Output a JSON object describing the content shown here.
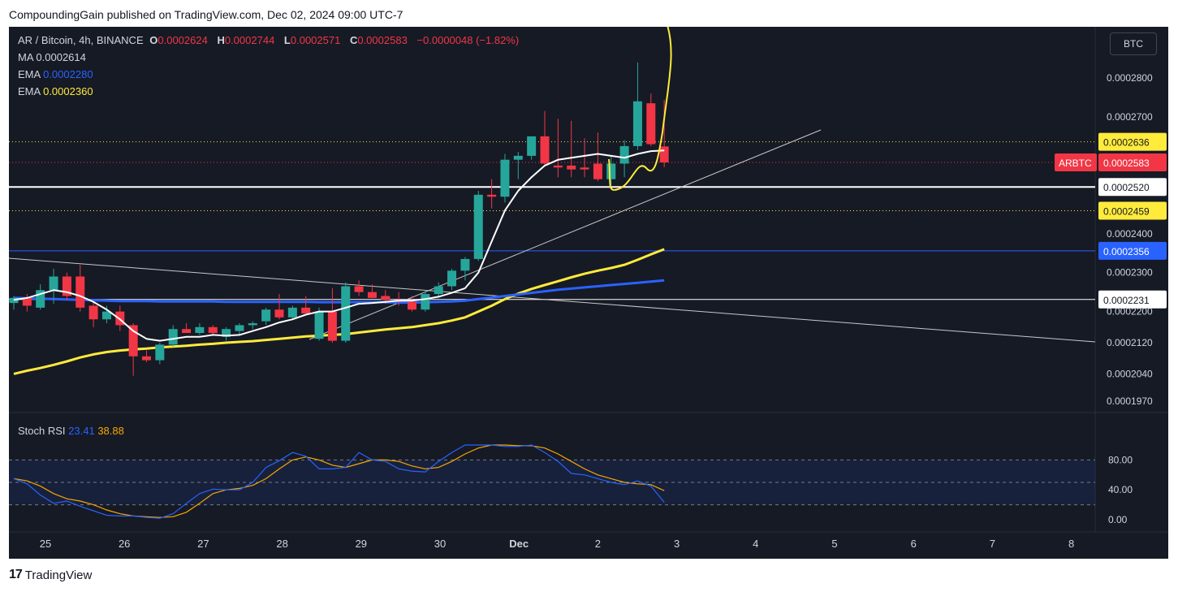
{
  "header": {
    "published_by": "CompoundingGain published on TradingView.com, Dec 02, 2024 09:00 UTC-7"
  },
  "legend": {
    "symbol": "AR / Bitcoin, 4h, BINANCE",
    "o_label": "O",
    "o_value": "0.0002624",
    "h_label": "H",
    "h_value": "0.0002744",
    "l_label": "L",
    "l_value": "0.0002571",
    "c_label": "C",
    "c_value": "0.0002583",
    "change": "−0.0000048 (−1.82%)",
    "ma_label": "MA",
    "ma_value": "0.0002614",
    "ema1_label": "EMA",
    "ema1_value": "0.0002280",
    "ema2_label": "EMA",
    "ema2_value": "0.0002360"
  },
  "currency_button": "BTC",
  "stoch": {
    "label": "Stoch RSI",
    "k_value": "23.41",
    "d_value": "38.88"
  },
  "footer": {
    "brand": "TradingView",
    "logo": "17"
  },
  "colors": {
    "up": "#26a69a",
    "down": "#f23645",
    "ma": "#ffffff",
    "ema_fast": "#2962ff",
    "ema_slow": "#ffeb3b",
    "bg": "#161a25",
    "stoch_k": "#2962ff",
    "stoch_d": "#f7a600"
  },
  "chart_data": {
    "type": "candlestick",
    "symbol": "ARBTC",
    "timeframe": "4h",
    "price_axis_ticks": [
      "0.0002800",
      "0.0002700",
      "0.0002400",
      "0.0002300",
      "0.0002200",
      "0.0002120",
      "0.0002040",
      "0.0001970"
    ],
    "price_tick_values": [
      0.00028,
      0.00027,
      0.00024,
      0.00023,
      0.00022,
      0.000212,
      0.000204,
      0.000197
    ],
    "time_axis_labels": [
      "25",
      "26",
      "27",
      "28",
      "29",
      "30",
      "Dec",
      "2",
      "3",
      "4",
      "5",
      "6",
      "7",
      "8"
    ],
    "price_labels": [
      {
        "text": "0.0002636",
        "value": 0.0002636,
        "style": "yellow"
      },
      {
        "text": "0.0002583",
        "value": 0.0002583,
        "style": "red",
        "tag": "ARBTC"
      },
      {
        "text": "0.0002520",
        "value": 0.000252,
        "style": "white"
      },
      {
        "text": "0.0002459",
        "value": 0.0002459,
        "style": "yellow"
      },
      {
        "text": "0.0002356",
        "value": 0.0002356,
        "style": "blue"
      },
      {
        "text": "0.0002231",
        "value": 0.0002231,
        "style": "white"
      }
    ],
    "horizontal_lines": [
      {
        "value": 0.000252,
        "style": "solid-white"
      },
      {
        "value": 0.0002231,
        "style": "solid-white"
      },
      {
        "value": 0.0002356,
        "style": "solid-blue"
      },
      {
        "value": 0.0002636,
        "style": "dotted-yellow"
      },
      {
        "value": 0.0002459,
        "style": "dotted-yellow"
      },
      {
        "value": 0.0002583,
        "style": "dotted-red"
      }
    ],
    "candles": [
      [
        0.0002222,
        0.000224,
        0.0002205,
        0.0002235
      ],
      [
        0.0002235,
        0.0002245,
        0.00022,
        0.0002215
      ],
      [
        0.000221,
        0.000227,
        0.0002205,
        0.0002255
      ],
      [
        0.0002255,
        0.000231,
        0.000222,
        0.000229
      ],
      [
        0.000229,
        0.00023,
        0.000223,
        0.000224
      ],
      [
        0.000229,
        0.000232,
        0.00022,
        0.000221
      ],
      [
        0.0002215,
        0.0002225,
        0.000216,
        0.000218
      ],
      [
        0.000218,
        0.0002215,
        0.000217,
        0.00022
      ],
      [
        0.00022,
        0.0002215,
        0.000215,
        0.0002165
      ],
      [
        0.0002165,
        0.000217,
        0.0002035,
        0.0002085
      ],
      [
        0.0002085,
        0.00021,
        0.000207,
        0.0002075
      ],
      [
        0.0002075,
        0.000212,
        0.0002065,
        0.0002115
      ],
      [
        0.0002115,
        0.0002165,
        0.000211,
        0.0002155
      ],
      [
        0.0002155,
        0.000217,
        0.0002145,
        0.0002145
      ],
      [
        0.0002145,
        0.000217,
        0.000214,
        0.000216
      ],
      [
        0.000216,
        0.0002165,
        0.000214,
        0.0002145
      ],
      [
        0.0002135,
        0.000216,
        0.0002125,
        0.0002155
      ],
      [
        0.000215,
        0.000217,
        0.000214,
        0.0002165
      ],
      [
        0.0002165,
        0.0002175,
        0.0002155,
        0.000217
      ],
      [
        0.0002175,
        0.000221,
        0.0002165,
        0.0002205
      ],
      [
        0.0002205,
        0.0002245,
        0.000218,
        0.0002185
      ],
      [
        0.0002185,
        0.0002215,
        0.000218,
        0.000221
      ],
      [
        0.000221,
        0.000224,
        0.0002195,
        0.0002195
      ],
      [
        0.000213,
        0.000221,
        0.0002125,
        0.00022
      ],
      [
        0.00022,
        0.000226,
        0.000212,
        0.0002125
      ],
      [
        0.0002125,
        0.0002275,
        0.000212,
        0.0002265
      ],
      [
        0.0002265,
        0.000228,
        0.000224,
        0.000225
      ],
      [
        0.000225,
        0.000227,
        0.0002235,
        0.0002235
      ],
      [
        0.000224,
        0.0002255,
        0.000222,
        0.000223
      ],
      [
        0.000223,
        0.000225,
        0.0002215,
        0.0002225
      ],
      [
        0.0002225,
        0.000224,
        0.00022,
        0.0002205
      ],
      [
        0.0002205,
        0.0002255,
        0.00022,
        0.0002245
      ],
      [
        0.0002245,
        0.0002275,
        0.0002235,
        0.0002265
      ],
      [
        0.0002265,
        0.000231,
        0.0002255,
        0.0002305
      ],
      [
        0.0002305,
        0.000234,
        0.000228,
        0.0002335
      ],
      [
        0.0002335,
        0.000251,
        0.000233,
        0.00025
      ],
      [
        0.00025,
        0.000254,
        0.0002465,
        0.0002495
      ],
      [
        0.0002495,
        0.0002605,
        0.000248,
        0.000259
      ],
      [
        0.000259,
        0.000261,
        0.000254,
        0.00026
      ],
      [
        0.00026,
        0.000265,
        0.000259,
        0.000265
      ],
      [
        0.000265,
        0.0002715,
        0.0002575,
        0.000258
      ],
      [
        0.0002575,
        0.0002695,
        0.0002545,
        0.000257
      ],
      [
        0.0002575,
        0.000269,
        0.0002545,
        0.0002565
      ],
      [
        0.000257,
        0.0002645,
        0.0002545,
        0.0002565
      ],
      [
        0.000258,
        0.000266,
        0.0002535,
        0.000254
      ],
      [
        0.000254,
        0.00026,
        0.0002525,
        0.000258
      ],
      [
        0.000258,
        0.000264,
        0.0002545,
        0.0002625
      ],
      [
        0.0002625,
        0.000284,
        0.0002615,
        0.000274
      ],
      [
        0.0002735,
        0.000276,
        0.0002625,
        0.000263
      ],
      [
        0.0002624,
        0.0002744,
        0.0002571,
        0.0002583
      ]
    ],
    "candle_notes": "each candle is [open, high, low, close]",
    "ma": [
      0.000223,
      0.0002235,
      0.0002245,
      0.0002255,
      0.000225,
      0.000224,
      0.0002225,
      0.0002205,
      0.000218,
      0.000215,
      0.000213,
      0.0002125,
      0.000213,
      0.0002135,
      0.0002135,
      0.000214,
      0.0002138,
      0.000214,
      0.000215,
      0.000216,
      0.0002172,
      0.000218,
      0.0002192,
      0.00022,
      0.00022,
      0.000221,
      0.000222,
      0.0002222,
      0.0002225,
      0.0002228,
      0.0002228,
      0.0002232,
      0.0002238,
      0.0002248,
      0.000226,
      0.00023,
      0.000238,
      0.000246,
      0.000251,
      0.0002545,
      0.0002575,
      0.000259,
      0.0002595,
      0.00026,
      0.0002605,
      0.00026,
      0.0002595,
      0.0002605,
      0.0002612,
      0.0002614
    ],
    "ema_fast": [
      0.0002235,
      0.0002234,
      0.0002233,
      0.0002232,
      0.0002231,
      0.000223,
      0.0002229,
      0.0002228,
      0.0002227,
      0.0002227,
      0.0002227,
      0.0002226,
      0.0002226,
      0.0002226,
      0.0002226,
      0.0002226,
      0.0002225,
      0.0002225,
      0.0002225,
      0.0002225,
      0.0002225,
      0.0002225,
      0.0002225,
      0.0002224,
      0.0002224,
      0.0002224,
      0.0002224,
      0.0002224,
      0.0002224,
      0.0002223,
      0.0002223,
      0.0002224,
      0.0002225,
      0.0002226,
      0.0002228,
      0.0002232,
      0.0002236,
      0.000224,
      0.0002244,
      0.0002248,
      0.0002252,
      0.0002256,
      0.0002259,
      0.0002262,
      0.0002265,
      0.0002268,
      0.0002271,
      0.0002274,
      0.0002277,
      0.000228
    ],
    "ema_slow": [
      0.000204,
      0.0002048,
      0.0002055,
      0.0002063,
      0.0002072,
      0.0002082,
      0.000209,
      0.0002096,
      0.00021,
      0.0002103,
      0.0002105,
      0.0002108,
      0.000211,
      0.0002112,
      0.0002115,
      0.0002117,
      0.000212,
      0.0002122,
      0.0002124,
      0.0002127,
      0.000213,
      0.0002133,
      0.0002136,
      0.0002138,
      0.000214,
      0.0002142,
      0.0002146,
      0.000215,
      0.0002154,
      0.0002157,
      0.000216,
      0.0002165,
      0.000217,
      0.0002177,
      0.0002185,
      0.00022,
      0.0002215,
      0.0002232,
      0.0002246,
      0.0002258,
      0.0002268,
      0.0002278,
      0.0002288,
      0.0002297,
      0.0002305,
      0.0002312,
      0.000232,
      0.0002333,
      0.0002347,
      0.000236
    ],
    "stoch_rsi": {
      "ticks": [
        "80.00",
        "40.00",
        "0.00"
      ],
      "tick_values": [
        80,
        40,
        0
      ],
      "k": [
        55,
        48,
        33,
        22,
        25,
        18,
        12,
        6,
        5,
        5,
        3,
        2,
        8,
        22,
        35,
        41,
        40,
        40,
        50,
        70,
        79,
        90,
        85,
        68,
        68,
        70,
        90,
        80,
        78,
        68,
        65,
        64,
        78,
        90,
        100,
        100,
        100,
        98,
        98,
        100,
        90,
        78,
        62,
        60,
        55,
        50,
        47,
        52,
        45,
        23.41
      ],
      "d": [
        55,
        52,
        45,
        35,
        28,
        25,
        20,
        13,
        8,
        5,
        4,
        3,
        4,
        10,
        22,
        35,
        40,
        42,
        46,
        55,
        68,
        80,
        84,
        80,
        73,
        70,
        75,
        80,
        80,
        78,
        72,
        68,
        70,
        78,
        88,
        96,
        100,
        100,
        99,
        99,
        96,
        88,
        78,
        68,
        60,
        55,
        50,
        48,
        47,
        38.88
      ]
    }
  }
}
